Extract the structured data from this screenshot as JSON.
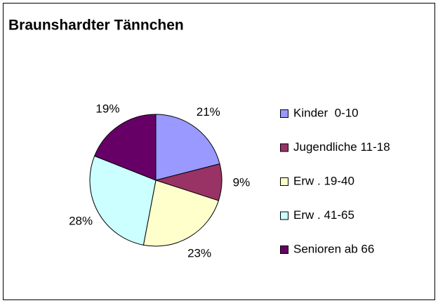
{
  "chart_data": {
    "type": "pie",
    "title": "Braunshardter Tännchen",
    "categories": [
      "Kinder  0-10",
      "Jugendliche 11-18",
      "Erw . 19-40",
      "Erw . 41-65",
      "Senioren ab 66"
    ],
    "values": [
      21,
      9,
      23,
      28,
      19
    ],
    "value_labels": [
      "21%",
      "9%",
      "23%",
      "28%",
      "19%"
    ],
    "colors": [
      "#9999ff",
      "#993366",
      "#ffffcc",
      "#ccffff",
      "#660066"
    ],
    "legend": "right"
  }
}
